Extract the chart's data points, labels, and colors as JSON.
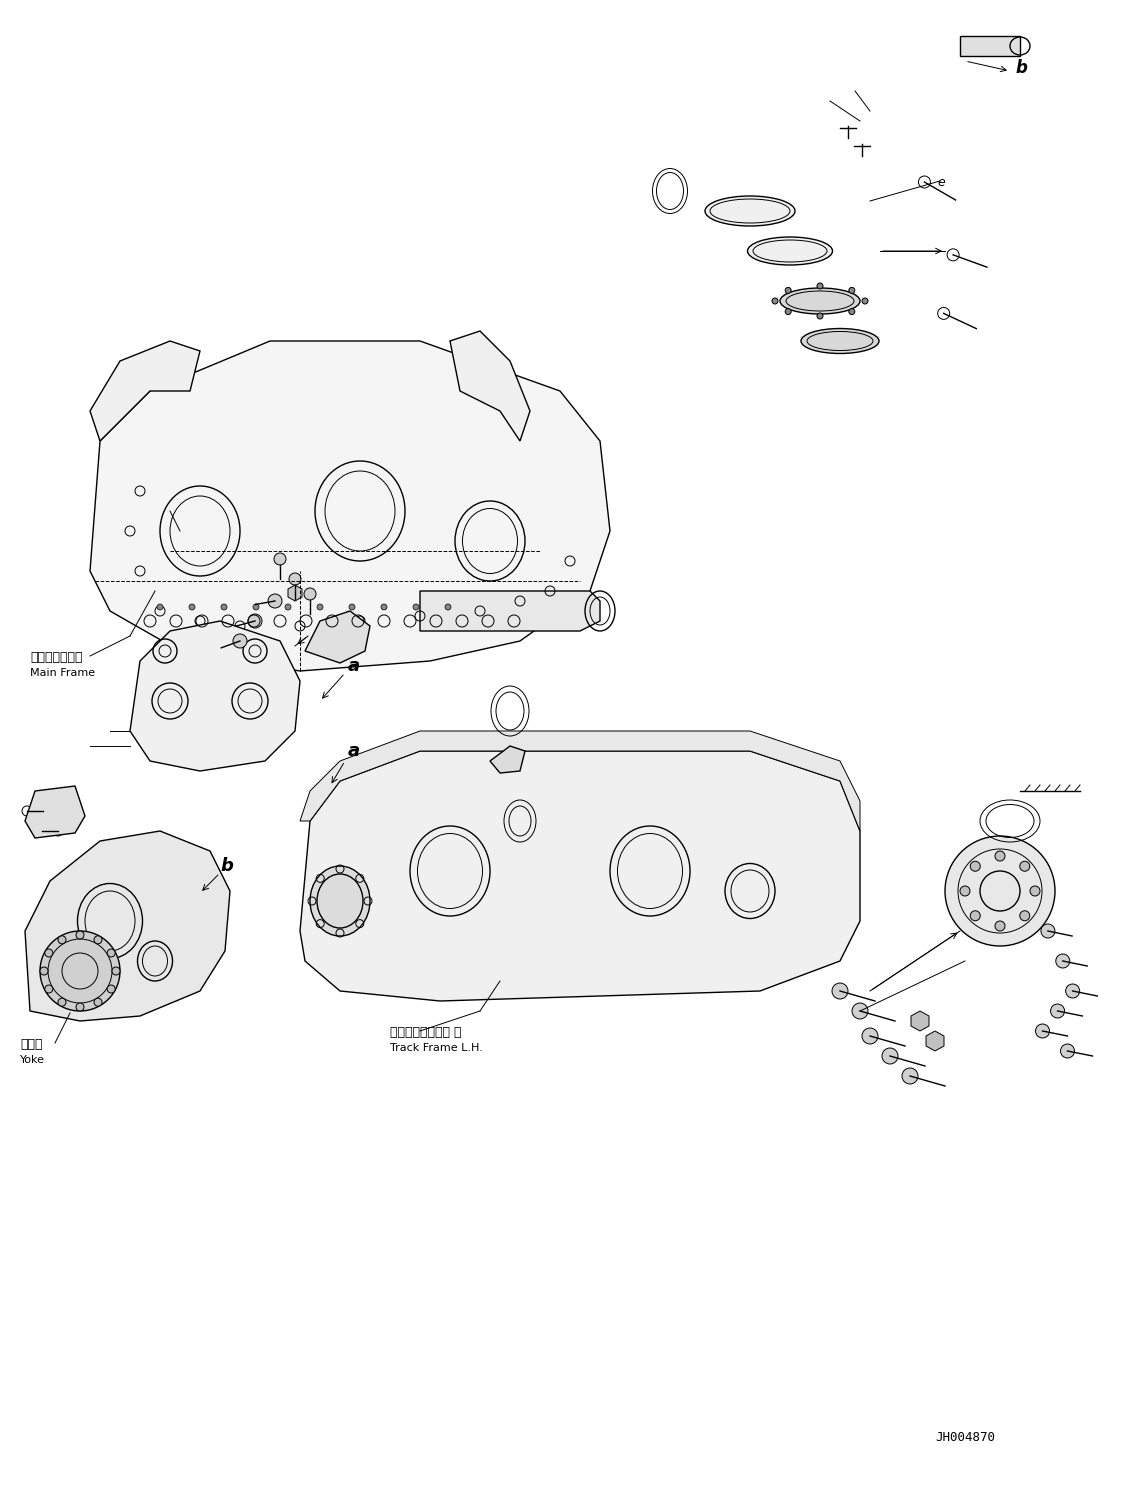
{
  "bg_color": "#ffffff",
  "line_color": "#000000",
  "figsize": [
    11.35,
    14.91
  ],
  "dpi": 100,
  "part_code": "JH004870",
  "labels": {
    "main_frame_ja": "メインフレーム",
    "main_frame_en": "Main Frame",
    "track_frame_ja": "トラックフレーム 左",
    "track_frame_en": "Track Frame L.H.",
    "yoke_ja": "ヨーク",
    "yoke_en": "Yoke",
    "label_a1": "a",
    "label_a2": "a",
    "label_b1": "b",
    "label_b2": "b",
    "label_e": "e"
  }
}
